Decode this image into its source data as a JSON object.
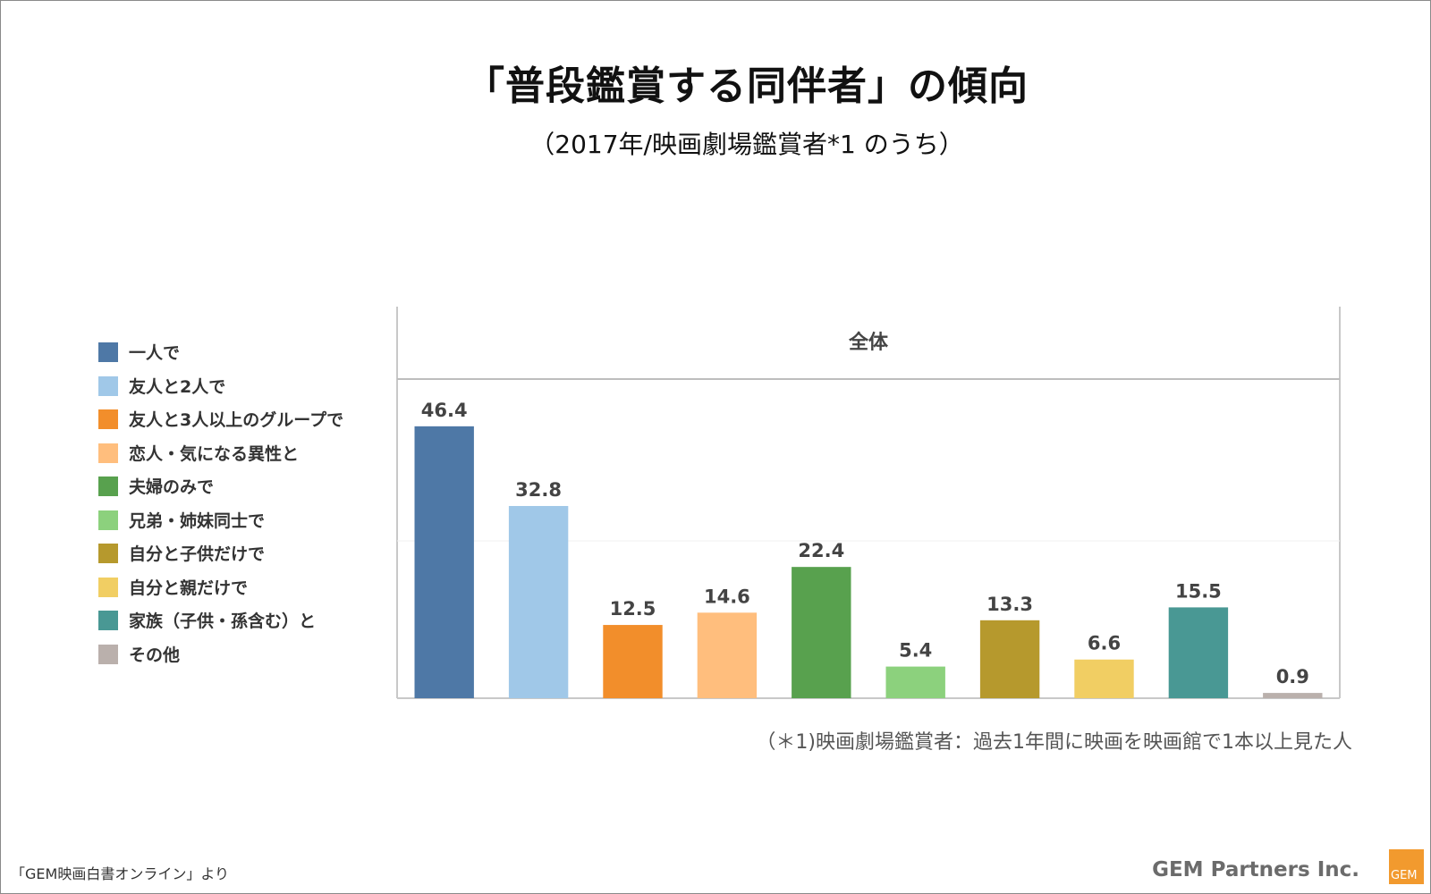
{
  "title": "「普段鑑賞する同伴者」の傾向",
  "subtitle": "（2017年/映画劇場鑑賞者*1 のうち）",
  "footnote": "（＊1)映画劇場鑑賞者：過去1年間に映画を映画館で1本以上見た人",
  "source": "「GEM映画白書オンライン」より",
  "brand": "GEM Partners Inc.",
  "logo_text": "GEM",
  "chart_data": {
    "type": "bar",
    "panel_header": "全体",
    "categories": [
      "一人で",
      "友人と2人で",
      "友人と3人以上のグループで",
      "恋人・気になる異性と",
      "夫婦のみで",
      "兄弟・姉妹同士で",
      "自分と子供だけで",
      "自分と親だけで",
      "家族（子供・孫含む）と",
      "その他"
    ],
    "values": [
      46.4,
      32.8,
      12.5,
      14.6,
      22.4,
      5.4,
      13.3,
      6.6,
      15.5,
      0.9
    ],
    "value_labels": [
      "46.4",
      "32.8",
      "12.5",
      "14.6",
      "22.4",
      "5.4",
      "13.3",
      "6.6",
      "15.5",
      "0.9"
    ],
    "colors": [
      "#4e78a6",
      "#a0c8e8",
      "#f28e2b",
      "#ffbe7d",
      "#58a14e",
      "#8cd17d",
      "#b6992d",
      "#f1ce63",
      "#499894",
      "#bab0ac"
    ],
    "ylim": [
      0,
      50
    ],
    "legend_position": "left"
  }
}
